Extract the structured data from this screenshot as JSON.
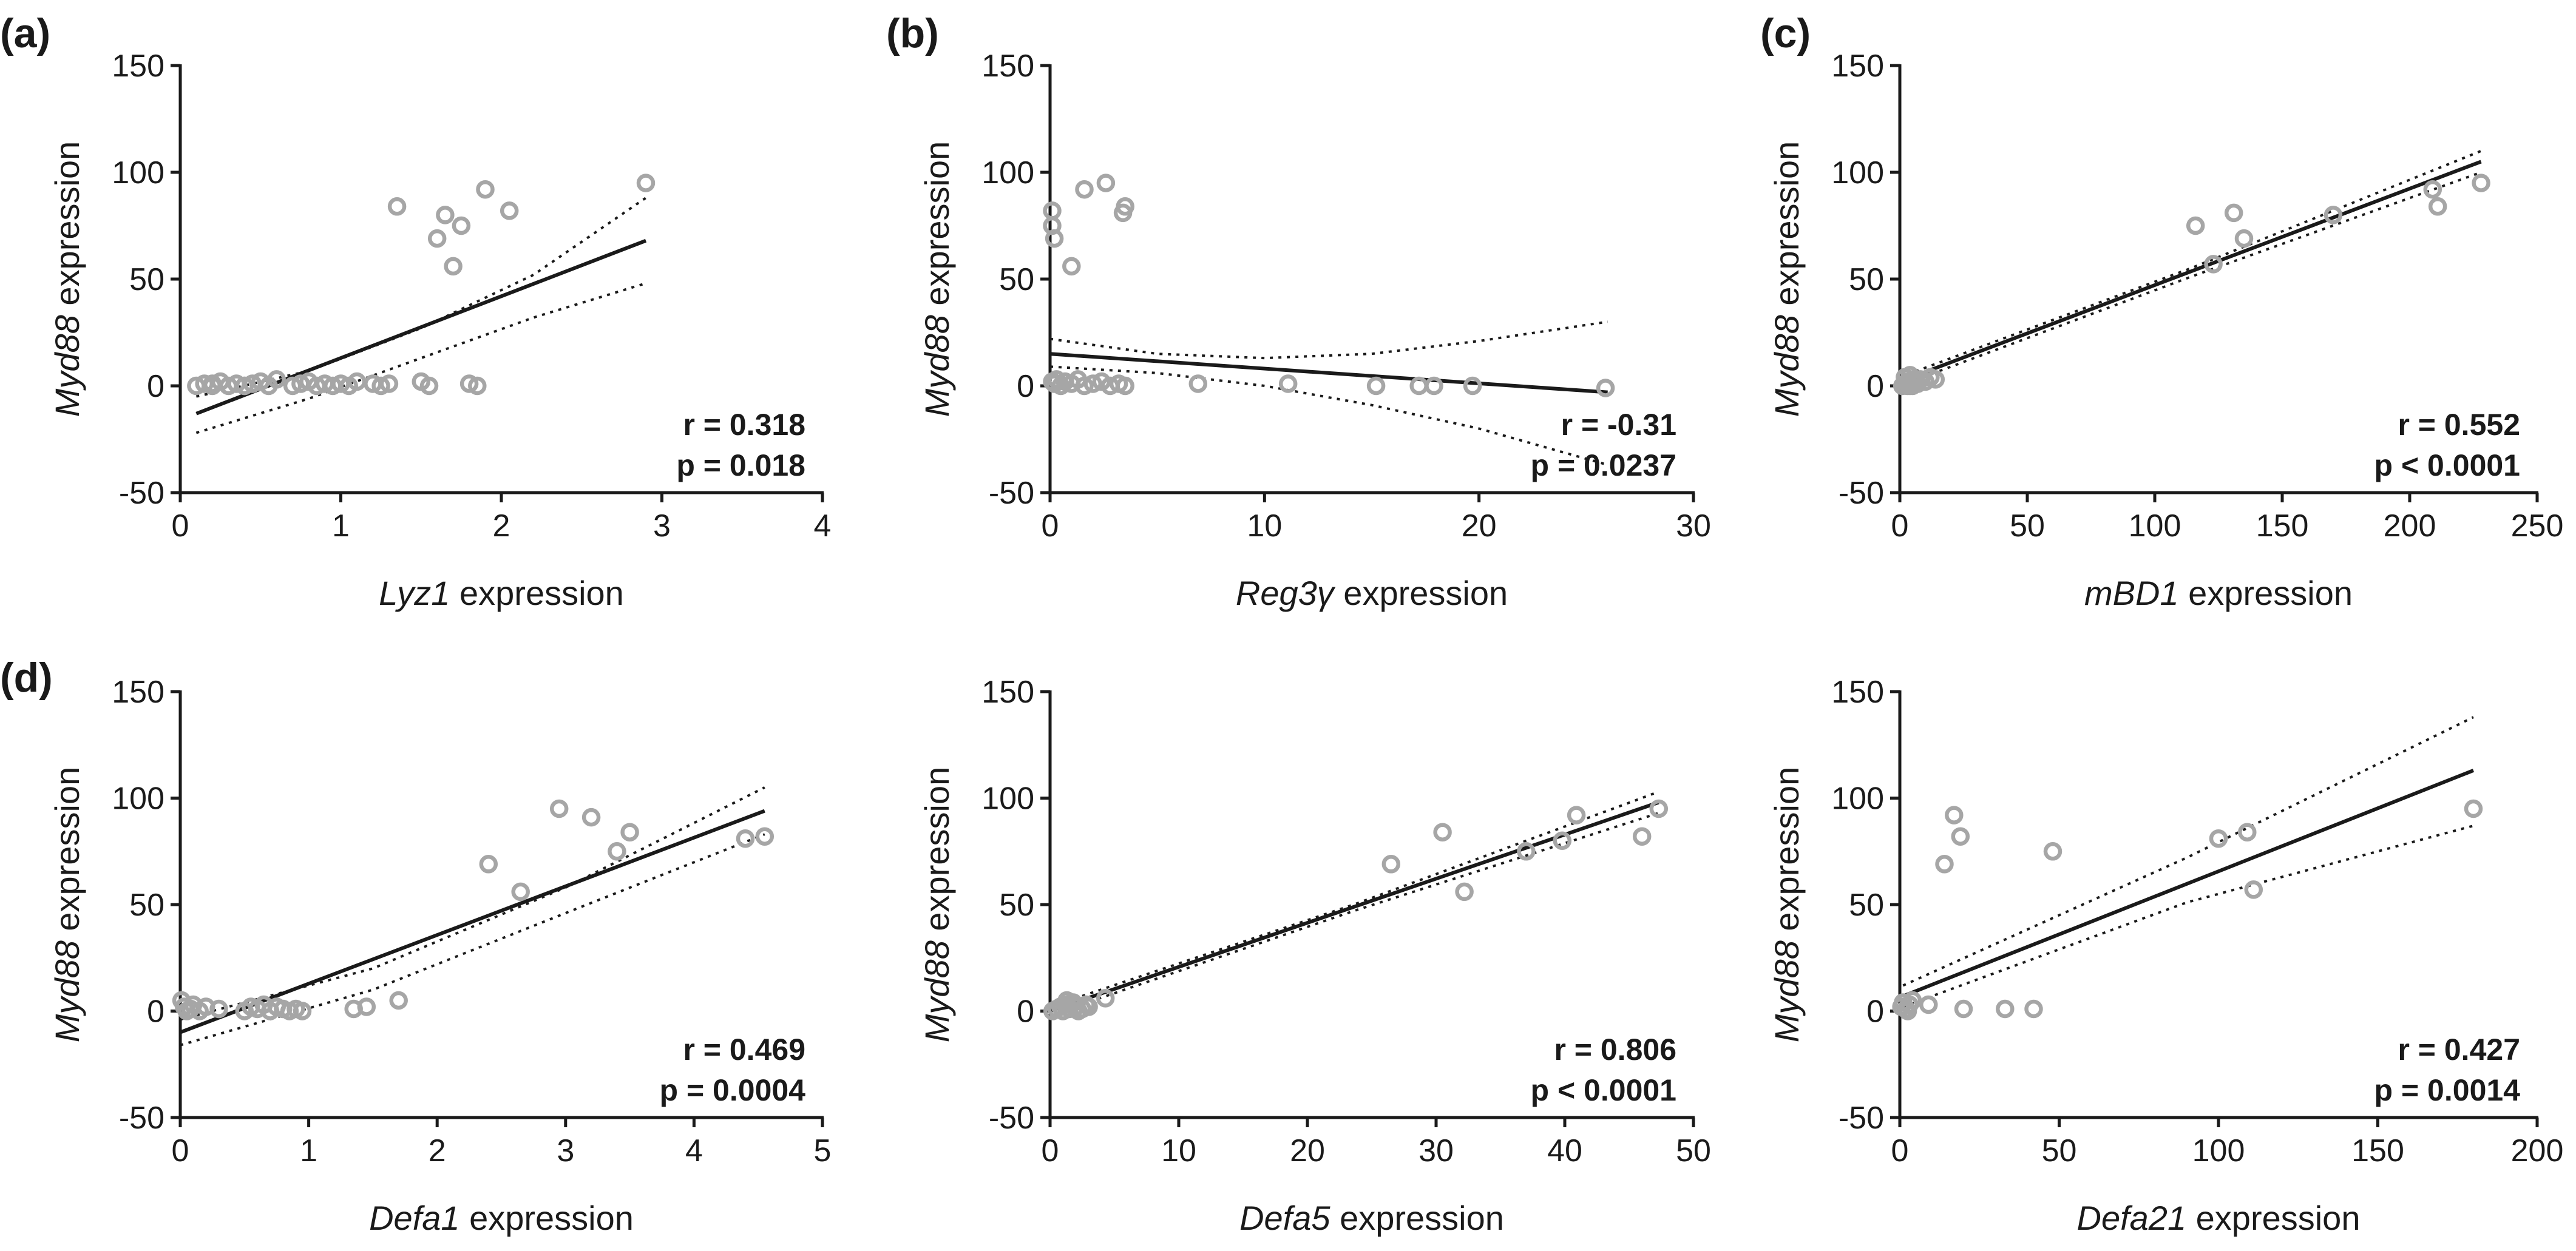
{
  "chart_data": [
    {
      "type": "scatter",
      "panel_label": "(a)",
      "ylabel": "Myd88 expression",
      "ylabel_italic": "Myd88",
      "ylabel_rest": " expression",
      "xlabel_italic": "Lyz1",
      "xlabel_rest": " expression",
      "xlim": [
        0,
        4
      ],
      "ylim": [
        -50,
        150
      ],
      "xticks": [
        0,
        1,
        2,
        3,
        4
      ],
      "yticks": [
        -50,
        0,
        50,
        100,
        150
      ],
      "x": [
        0.1,
        0.15,
        0.2,
        0.25,
        0.3,
        0.35,
        0.4,
        0.45,
        0.5,
        0.55,
        0.6,
        0.2,
        0.4,
        0.7,
        0.75,
        0.8,
        0.85,
        0.9,
        0.95,
        1.0,
        1.05,
        1.1,
        1.2,
        1.25,
        1.3,
        1.5,
        1.55,
        1.8,
        1.85,
        1.35,
        1.6,
        1.65,
        1.7,
        1.75,
        1.9,
        2.05,
        2.9
      ],
      "y": [
        0,
        1,
        0,
        2,
        0,
        1,
        0,
        1,
        2,
        0,
        3,
        1,
        0,
        0,
        1,
        2,
        0,
        1,
        0,
        1,
        0,
        2,
        1,
        0,
        1,
        2,
        0,
        1,
        0,
        84,
        69,
        80,
        56,
        75,
        92,
        82,
        95
      ],
      "fit": {
        "x": [
          0.1,
          2.9
        ],
        "y": [
          -13,
          68
        ]
      },
      "ci_upper": [
        [
          0.1,
          -5
        ],
        [
          0.8,
          7
        ],
        [
          1.5,
          27
        ],
        [
          2.2,
          52
        ],
        [
          2.9,
          88
        ]
      ],
      "ci_lower": [
        [
          0.1,
          -22
        ],
        [
          0.8,
          -6
        ],
        [
          1.5,
          13
        ],
        [
          2.2,
          32
        ],
        [
          2.9,
          48
        ]
      ],
      "stat_r": "r = 0.318",
      "stat_p": "p = 0.018"
    },
    {
      "type": "scatter",
      "panel_label": "(b)",
      "ylabel": "Myd88 expression",
      "ylabel_italic": "Myd88",
      "ylabel_rest": " expression",
      "xlabel_italic": "Reg3γ",
      "xlabel_rest": " expression",
      "xlim": [
        0,
        30
      ],
      "ylim": [
        -50,
        150
      ],
      "xticks": [
        0,
        10,
        20,
        30
      ],
      "yticks": [
        -50,
        0,
        50,
        100,
        150
      ],
      "x": [
        0.1,
        0.2,
        0.3,
        0.5,
        0.7,
        1.0,
        1.3,
        1.6,
        2.0,
        2.4,
        2.8,
        3.2,
        3.5,
        0.1,
        0.1,
        0.2,
        1.0,
        1.6,
        2.6,
        3.5,
        3.4,
        6.9,
        11.1,
        15.2,
        17.2,
        17.9,
        19.7,
        25.9
      ],
      "y": [
        2,
        1,
        3,
        0,
        2,
        1,
        3,
        0,
        1,
        2,
        0,
        1,
        0,
        82,
        75,
        69,
        56,
        92,
        95,
        84,
        81,
        1,
        1,
        0,
        0,
        0,
        0,
        -1
      ],
      "fit": {
        "x": [
          0,
          26
        ],
        "y": [
          15,
          -3
        ]
      },
      "ci_upper": [
        [
          0,
          22
        ],
        [
          5,
          15
        ],
        [
          10,
          13
        ],
        [
          15,
          15
        ],
        [
          20,
          21
        ],
        [
          26,
          30
        ]
      ],
      "ci_lower": [
        [
          0,
          9
        ],
        [
          5,
          6
        ],
        [
          10,
          0
        ],
        [
          15,
          -9
        ],
        [
          20,
          -20
        ],
        [
          26,
          -37
        ]
      ],
      "stat_r": "r = -0.31",
      "stat_p": "p = 0.0237"
    },
    {
      "type": "scatter",
      "panel_label": "(c)",
      "ylabel": "Myd88 expression",
      "ylabel_italic": "Myd88",
      "ylabel_rest": " expression",
      "xlabel_italic": "mBD1",
      "xlabel_rest": " expression",
      "xlim": [
        0,
        250
      ],
      "ylim": [
        -50,
        150
      ],
      "xticks": [
        0,
        50,
        100,
        150,
        200,
        250
      ],
      "yticks": [
        -50,
        0,
        50,
        100,
        150
      ],
      "x": [
        1,
        2,
        3,
        4,
        5,
        6,
        2,
        3,
        4,
        5,
        7,
        8,
        10,
        12,
        14,
        3,
        6,
        116,
        123,
        131,
        135,
        170,
        209,
        211,
        228
      ],
      "y": [
        0,
        1,
        2,
        0,
        3,
        1,
        4,
        2,
        5,
        0,
        1,
        3,
        2,
        4,
        3,
        0,
        2,
        75,
        57,
        81,
        69,
        80,
        92,
        84,
        95
      ],
      "fit": {
        "x": [
          0,
          228
        ],
        "y": [
          2,
          105
        ]
      },
      "ci_upper": [
        [
          0,
          4
        ],
        [
          114,
          55
        ],
        [
          228,
          110
        ]
      ],
      "ci_lower": [
        [
          0,
          0
        ],
        [
          114,
          51
        ],
        [
          228,
          100
        ]
      ],
      "stat_r": "r = 0.552",
      "stat_p": "p < 0.0001"
    },
    {
      "type": "scatter",
      "panel_label": "(d)",
      "ylabel": "Myd88 expression",
      "ylabel_italic": "Myd88",
      "ylabel_rest": " expression",
      "xlabel_italic": "Defa1",
      "xlabel_rest": " expression",
      "xlim": [
        0,
        5
      ],
      "ylim": [
        -50,
        150
      ],
      "xticks": [
        0,
        1,
        2,
        3,
        4,
        5
      ],
      "yticks": [
        -50,
        0,
        50,
        100,
        150
      ],
      "x": [
        0.01,
        0.03,
        0.05,
        0.08,
        0.1,
        0.15,
        0.2,
        0.3,
        0.5,
        0.55,
        0.6,
        0.65,
        0.7,
        0.75,
        0.8,
        0.85,
        0.9,
        0.95,
        1.35,
        1.45,
        1.7,
        2.4,
        2.65,
        2.95,
        3.2,
        3.4,
        3.5,
        4.4,
        4.55
      ],
      "y": [
        5,
        2,
        0,
        1,
        3,
        0,
        2,
        1,
        0,
        2,
        1,
        3,
        0,
        2,
        1,
        0,
        1,
        0,
        1,
        2,
        5,
        69,
        56,
        95,
        91,
        75,
        84,
        81,
        82
      ],
      "fit": {
        "x": [
          0,
          4.55
        ],
        "y": [
          -10,
          94
        ]
      },
      "ci_upper": [
        [
          0,
          -4
        ],
        [
          1.5,
          20
        ],
        [
          3,
          58
        ],
        [
          4.55,
          105
        ]
      ],
      "ci_lower": [
        [
          0,
          -16
        ],
        [
          1.5,
          10
        ],
        [
          3,
          46
        ],
        [
          4.55,
          83
        ]
      ],
      "stat_r": "r = 0.469",
      "stat_p": "p = 0.0004"
    },
    {
      "type": "scatter",
      "panel_label": "",
      "ylabel": "Myd88 expression",
      "ylabel_italic": "Myd88",
      "ylabel_rest": " expression",
      "xlabel_italic": "Defa5",
      "xlabel_rest": " expression",
      "xlim": [
        0,
        50
      ],
      "ylim": [
        -50,
        150
      ],
      "xticks": [
        0,
        10,
        20,
        30,
        40,
        50
      ],
      "yticks": [
        -50,
        0,
        50,
        100,
        150
      ],
      "x": [
        0.2,
        0.5,
        0.8,
        1.0,
        1.2,
        1.5,
        1.8,
        2.0,
        2.2,
        2.5,
        2.8,
        3.0,
        1.3,
        1.7,
        4.3,
        26.5,
        30.5,
        32.2,
        37.0,
        39.8,
        40.9,
        46.0,
        47.3
      ],
      "y": [
        0,
        1,
        2,
        0,
        3,
        1,
        4,
        2,
        0,
        1,
        3,
        2,
        5,
        4,
        6,
        69,
        84,
        56,
        75,
        80,
        92,
        82,
        95
      ],
      "fit": {
        "x": [
          0,
          47.3
        ],
        "y": [
          0,
          98
        ]
      },
      "ci_upper": [
        [
          0,
          2
        ],
        [
          23.6,
          50
        ],
        [
          47.3,
          103
        ]
      ],
      "ci_lower": [
        [
          0,
          -2
        ],
        [
          23.6,
          47
        ],
        [
          47.3,
          93
        ]
      ],
      "stat_r": "r = 0.806",
      "stat_p": "p < 0.0001"
    },
    {
      "type": "scatter",
      "panel_label": "",
      "ylabel": "Myd88 expression",
      "ylabel_italic": "Myd88",
      "ylabel_rest": " expression",
      "xlabel_italic": "Defa21",
      "xlabel_rest": " expression",
      "xlim": [
        0,
        200
      ],
      "ylim": [
        -50,
        150
      ],
      "xticks": [
        0,
        50,
        100,
        150,
        200
      ],
      "yticks": [
        -50,
        0,
        50,
        100,
        150
      ],
      "x": [
        0.5,
        1,
        2,
        3,
        4,
        2.5,
        9,
        14,
        17,
        19,
        20,
        33,
        42,
        48,
        100,
        109,
        111,
        180
      ],
      "y": [
        2,
        4,
        1,
        3,
        5,
        0,
        3,
        69,
        92,
        82,
        1,
        1,
        1,
        75,
        81,
        84,
        57,
        95
      ],
      "fit": {
        "x": [
          1,
          180
        ],
        "y": [
          7,
          113
        ]
      },
      "ci_upper": [
        [
          1,
          12
        ],
        [
          90,
          72
        ],
        [
          180,
          138
        ]
      ],
      "ci_lower": [
        [
          1,
          2
        ],
        [
          90,
          51
        ],
        [
          180,
          87
        ]
      ],
      "stat_r": "r = 0.427",
      "stat_p": "p = 0.0014"
    }
  ]
}
